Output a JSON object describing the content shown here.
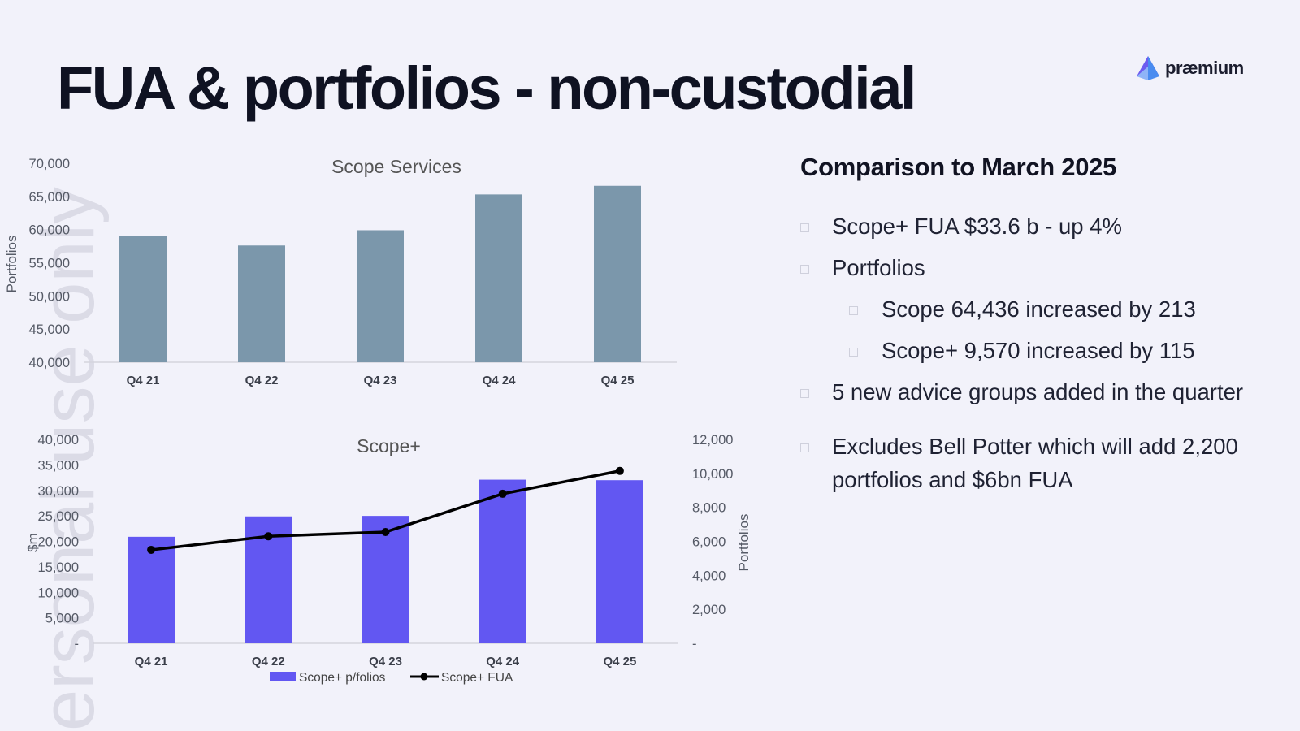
{
  "slide": {
    "title": "FUA & portfolios - non-custodial",
    "logo_text": "præmium",
    "watermark": "ersonal use only"
  },
  "panel": {
    "heading": "Comparison to March 2025",
    "bullets": [
      "Scope+ FUA $33.6 b - up 4%",
      "Portfolios",
      "Scope 64,436 increased by 213",
      "Scope+ 9,570 increased by 115",
      "5 new advice groups added in the quarter",
      "Excludes Bell Potter which will add 2,200 portfolios and $6bn FUA"
    ]
  },
  "chart_data": [
    {
      "type": "bar",
      "title": "Scope Services",
      "ylabel": "Portfolios",
      "categories": [
        "Q4 21",
        "Q4 22",
        "Q4 23",
        "Q4 24",
        "Q4 25"
      ],
      "values": [
        59000,
        57600,
        59900,
        65300,
        66600
      ],
      "ylim": [
        40000,
        70000
      ],
      "yticks": [
        "70,000",
        "65,000",
        "60,000",
        "55,000",
        "50,000",
        "45,000",
        "40,000"
      ],
      "bar_color": "#7b97ab",
      "grid": false
    },
    {
      "type": "bar+line",
      "title": "Scope+",
      "ylabel_left": "$m",
      "ylabel_right": "Portfolios",
      "categories": [
        "Q4 21",
        "Q4 22",
        "Q4 23",
        "Q4 24",
        "Q4 25"
      ],
      "series": [
        {
          "name": "Scope+ p/folios",
          "type": "bar",
          "axis": "left",
          "color": "#6257f2",
          "values": [
            20900,
            24900,
            25000,
            32100,
            32000
          ]
        },
        {
          "name": "Scope+ FUA",
          "type": "line",
          "axis": "right",
          "color": "#000000",
          "values": [
            5500,
            6300,
            6550,
            8800,
            10150
          ]
        }
      ],
      "ylim_left": [
        0,
        40000
      ],
      "ylim_right": [
        0,
        12000
      ],
      "yticks_left": [
        "40,000",
        "35,000",
        "30,000",
        "25,000",
        "20,000",
        "15,000",
        "10,000",
        "5,000",
        "-"
      ],
      "yticks_right": [
        "12,000",
        "10,000",
        "8,000",
        "6,000",
        "4,000",
        "2,000",
        "-"
      ],
      "legend_position": "bottom",
      "grid": false
    }
  ]
}
